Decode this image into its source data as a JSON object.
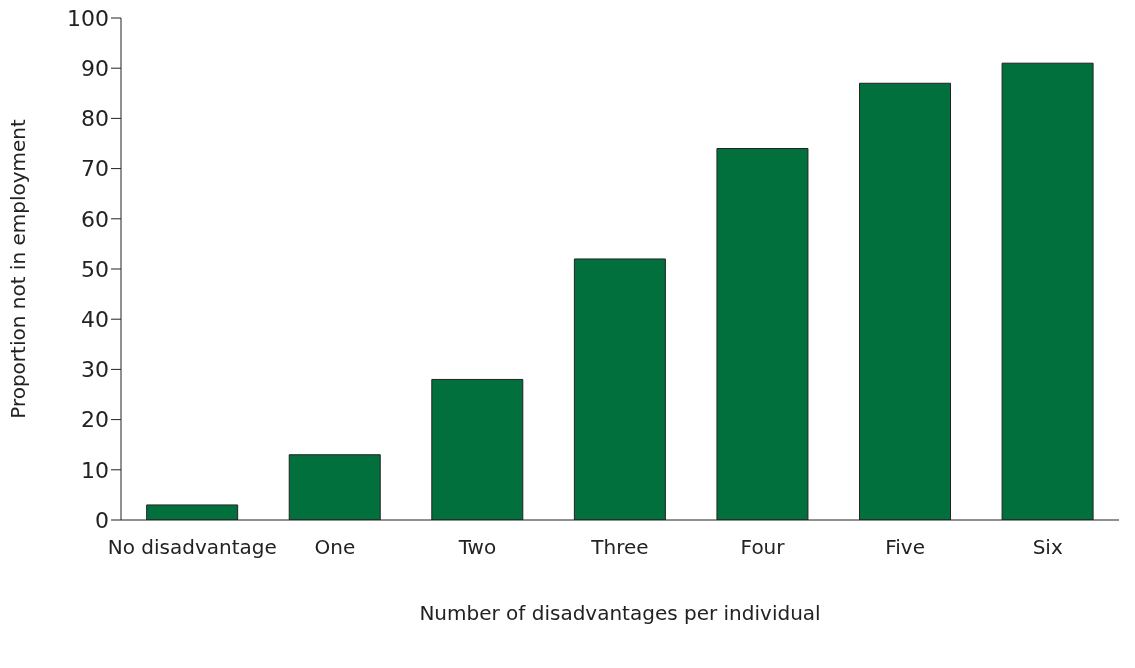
{
  "chart_data": {
    "type": "bar",
    "xlabel": "Number of disadvantages per individual",
    "ylabel": "Proportion not in employment",
    "categories": [
      "No disadvantage",
      "One",
      "Two",
      "Three",
      "Four",
      "Five",
      "Six"
    ],
    "values": [
      3,
      13,
      28,
      52,
      74,
      87,
      91
    ],
    "color": "#02703c",
    "ylim": [
      0,
      100
    ],
    "yticks": [
      0,
      10,
      20,
      30,
      40,
      50,
      60,
      70,
      80,
      90,
      100
    ],
    "grid": false
  }
}
